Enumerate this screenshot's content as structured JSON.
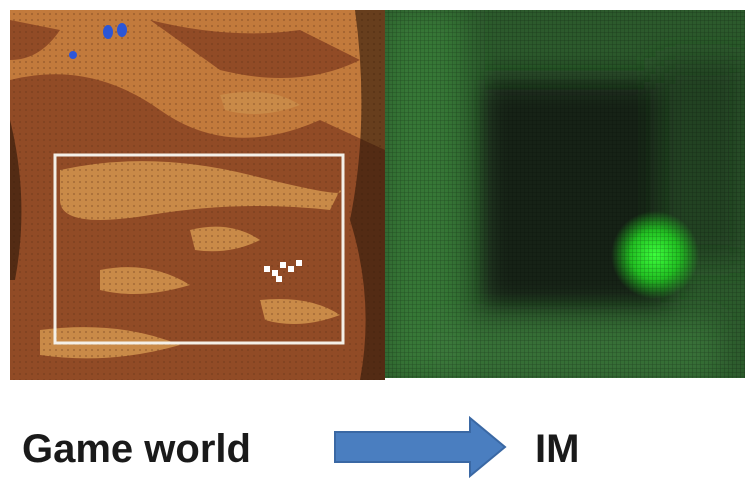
{
  "labels": {
    "source": "Game world",
    "target": "IM"
  }
}
